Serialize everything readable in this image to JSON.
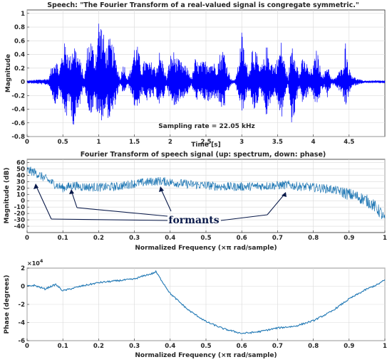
{
  "chart_data": [
    {
      "type": "line",
      "title": "Speech: \"The Fourier Transform of a real-valued signal is congregate symmetric.\"",
      "xlabel": "Time [s]",
      "ylabel": "Magnitude",
      "xlim": [
        0,
        5
      ],
      "ylim": [
        -0.8,
        1.05
      ],
      "xticks": [
        0,
        0.5,
        1,
        1.5,
        2,
        2.5,
        3,
        3.5,
        4,
        4.5
      ],
      "xtick_labels": [
        "0",
        "0.5",
        "1",
        "1.5",
        "2",
        "2.5",
        "3",
        "3.5",
        "4",
        "4.5"
      ],
      "yticks": [
        -0.8,
        -0.6,
        -0.4,
        -0.2,
        0,
        0.2,
        0.4,
        0.6,
        0.8,
        1
      ],
      "ytick_labels": [
        "-0.8",
        "-0.6",
        "-0.4",
        "-0.2",
        "0",
        "0.2",
        "0.4",
        "0.6",
        "0.8",
        "1"
      ],
      "annotation": "Sampling rate = 22.05 kHz",
      "grid": true,
      "series": [
        {
          "color": "#0000ff",
          "envelope_x": [
            0,
            0.2,
            0.3,
            0.35,
            0.4,
            0.45,
            0.5,
            0.55,
            0.6,
            0.65,
            0.7,
            0.75,
            0.8,
            0.85,
            0.9,
            0.95,
            1.0,
            1.05,
            1.1,
            1.15,
            1.2,
            1.25,
            1.3,
            1.35,
            1.4,
            1.45,
            1.5,
            1.55,
            1.6,
            1.65,
            1.7,
            1.75,
            1.8,
            1.85,
            1.9,
            1.95,
            2.0,
            2.05,
            2.1,
            2.15,
            2.2,
            2.25,
            2.3,
            2.35,
            2.4,
            2.45,
            2.5,
            2.55,
            2.6,
            2.65,
            2.7,
            2.75,
            2.8,
            2.85,
            2.9,
            2.95,
            3.0,
            3.05,
            3.1,
            3.15,
            3.2,
            3.25,
            3.3,
            3.35,
            3.4,
            3.45,
            3.5,
            3.55,
            3.6,
            3.65,
            3.7,
            3.75,
            3.8,
            3.85,
            3.9,
            3.95,
            4.0,
            4.05,
            4.1,
            4.15,
            4.2,
            4.25,
            4.3,
            4.35,
            4.4,
            4.45,
            4.5,
            4.55,
            4.6,
            4.7,
            5.0
          ],
          "envelope_upper": [
            0.02,
            0.04,
            0.05,
            0.25,
            0.4,
            0.15,
            0.55,
            0.6,
            0.35,
            0.65,
            0.45,
            0.3,
            0.05,
            0.6,
            0.65,
            0.35,
            0.97,
            0.85,
            0.5,
            0.65,
            0.55,
            0.3,
            0.05,
            0.32,
            0.05,
            0.2,
            0.55,
            0.52,
            0.2,
            0.35,
            0.28,
            0.3,
            0.2,
            0.45,
            0.3,
            0.05,
            0.4,
            0.45,
            0.35,
            0.3,
            0.25,
            0.2,
            0.05,
            0.35,
            0.28,
            0.3,
            0.32,
            0.35,
            0.3,
            0.25,
            0.45,
            0.5,
            0.22,
            0.05,
            0.02,
            0.25,
            0.75,
            0.35,
            0.15,
            0.58,
            0.45,
            0.2,
            0.3,
            0.55,
            0.35,
            0.25,
            0.35,
            0.6,
            0.3,
            0.05,
            0.65,
            0.45,
            0.1,
            0.35,
            0.3,
            0.15,
            0.25,
            0.5,
            0.2,
            0.1,
            0.3,
            0.05,
            0.05,
            0.15,
            0.2,
            0.6,
            0.2,
            0.1,
            0.05,
            0.02,
            0.02
          ],
          "envelope_lower": [
            -0.02,
            -0.04,
            -0.05,
            -0.2,
            -0.38,
            -0.12,
            -0.42,
            -0.55,
            -0.3,
            -0.72,
            -0.55,
            -0.28,
            -0.05,
            -0.4,
            -0.5,
            -0.32,
            -0.62,
            -0.55,
            -0.45,
            -0.58,
            -0.5,
            -0.25,
            -0.05,
            -0.2,
            -0.05,
            -0.15,
            -0.38,
            -0.4,
            -0.18,
            -0.32,
            -0.25,
            -0.28,
            -0.18,
            -0.38,
            -0.28,
            -0.05,
            -0.3,
            -0.42,
            -0.3,
            -0.28,
            -0.22,
            -0.18,
            -0.05,
            -0.28,
            -0.25,
            -0.25,
            -0.3,
            -0.32,
            -0.28,
            -0.22,
            -0.4,
            -0.42,
            -0.2,
            -0.05,
            -0.02,
            -0.2,
            -0.5,
            -0.3,
            -0.12,
            -0.45,
            -0.4,
            -0.18,
            -0.25,
            -0.55,
            -0.3,
            -0.22,
            -0.3,
            -0.6,
            -0.25,
            -0.05,
            -0.7,
            -0.4,
            -0.1,
            -0.32,
            -0.28,
            -0.12,
            -0.22,
            -0.45,
            -0.18,
            -0.08,
            -0.25,
            -0.05,
            -0.05,
            -0.12,
            -0.18,
            -0.4,
            -0.18,
            -0.08,
            -0.05,
            -0.02,
            -0.02
          ]
        }
      ]
    },
    {
      "type": "line",
      "title": "Fourier Transform of speech signal (up: spectrum, down: phase)",
      "xlabel": "Normalized Frequency  (×π rad/sample)",
      "ylabel": "Magnitude (dB)",
      "xlim": [
        0,
        1
      ],
      "ylim": [
        -50,
        65
      ],
      "xticks": [
        0,
        0.1,
        0.2,
        0.3,
        0.4,
        0.5,
        0.6,
        0.7,
        0.8,
        0.9,
        1
      ],
      "xtick_labels": [
        "0",
        "0.1",
        "0.2",
        "0.3",
        "0.4",
        "0.5",
        "0.6",
        "0.7",
        "0.8",
        "0.9",
        "1"
      ],
      "yticks": [
        -40,
        -30,
        -20,
        -10,
        0,
        10,
        20,
        30,
        40,
        50,
        60
      ],
      "ytick_labels": [
        "-40",
        "-30",
        "-20",
        "-10",
        "0",
        "10",
        "20",
        "30",
        "40",
        "50",
        "60"
      ],
      "annotation": "formants",
      "grid": true,
      "series": [
        {
          "color": "#1f77b4",
          "trend_x": [
            0,
            0.02,
            0.05,
            0.08,
            0.1,
            0.13,
            0.15,
            0.2,
            0.25,
            0.3,
            0.35,
            0.37,
            0.4,
            0.45,
            0.5,
            0.55,
            0.6,
            0.65,
            0.7,
            0.73,
            0.75,
            0.8,
            0.85,
            0.88,
            0.9,
            0.93,
            0.95,
            0.97,
            0.99,
            1.0
          ],
          "trend_y": [
            48,
            45,
            35,
            25,
            20,
            24,
            22,
            21,
            22,
            27,
            30,
            31,
            29,
            26,
            24,
            22,
            22,
            23,
            24,
            25,
            23,
            21,
            18,
            14,
            10,
            5,
            0,
            -8,
            -20,
            -32
          ],
          "noise_amplitude_db": 7
        }
      ]
    },
    {
      "type": "line",
      "title": "",
      "xlabel": "Normalized Frequency  (×π rad/sample)",
      "ylabel": "Phase (degrees)",
      "xlim": [
        0,
        1
      ],
      "ylim": [
        -6,
        2
      ],
      "y_multiplier": "10^4",
      "xticks": [
        0,
        0.1,
        0.2,
        0.3,
        0.4,
        0.5,
        0.6,
        0.7,
        0.8,
        0.9,
        1
      ],
      "xtick_labels": [
        "0",
        "0.1",
        "0.2",
        "0.3",
        "0.4",
        "0.5",
        "0.6",
        "0.7",
        "0.8",
        "0.9",
        "1"
      ],
      "yticks": [
        -6,
        -4,
        -2,
        0,
        2
      ],
      "ytick_labels": [
        "-6",
        "-4",
        "-2",
        "0",
        "2"
      ],
      "exponent_label": "×10",
      "exponent_power": "4",
      "grid": true,
      "series": [
        {
          "color": "#1f77b4",
          "x": [
            0,
            0.02,
            0.05,
            0.08,
            0.1,
            0.15,
            0.2,
            0.25,
            0.3,
            0.33,
            0.35,
            0.36,
            0.4,
            0.45,
            0.5,
            0.55,
            0.58,
            0.6,
            0.63,
            0.65,
            0.7,
            0.75,
            0.8,
            0.85,
            0.9,
            0.95,
            0.98,
            1.0
          ],
          "y": [
            0.0,
            0.1,
            -0.3,
            0.2,
            -0.5,
            0.0,
            0.4,
            0.6,
            0.8,
            1.2,
            1.4,
            1.6,
            -0.8,
            -2.6,
            -3.9,
            -4.7,
            -5.0,
            -5.2,
            -5.1,
            -5.0,
            -4.6,
            -4.4,
            -3.8,
            -2.8,
            -1.4,
            -0.3,
            0.2,
            0.7
          ]
        }
      ]
    }
  ]
}
